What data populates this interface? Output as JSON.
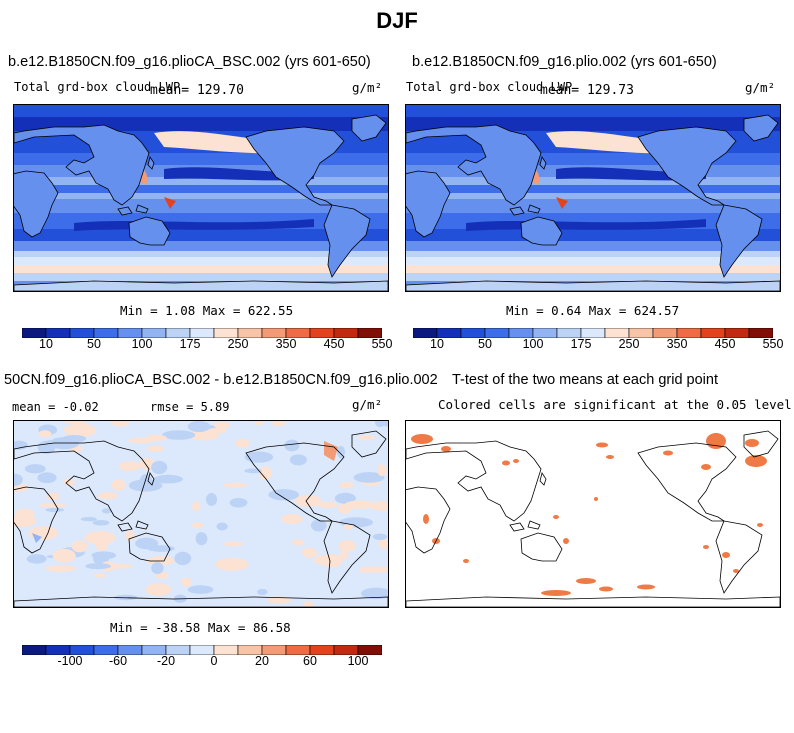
{
  "figure_title": "DJF",
  "chart_data": [
    {
      "type": "heatmap",
      "title": "b.e12.B1850CN.f09_g16.plioCA_BSC.002 (yrs 601-650)",
      "subtitle": "Total grd-box cloud LWP",
      "mean_text": "mean= 129.70",
      "units": "g/m²",
      "stats": "Min =    1.08 Max = 622.55",
      "colorbar": {
        "ticks": [
          "10",
          "50",
          "100",
          "175",
          "250",
          "350",
          "450",
          "550"
        ],
        "colors": [
          "#0c1a80",
          "#1530b8",
          "#2350d8",
          "#3d6de8",
          "#6690ee",
          "#93b4f2",
          "#bcd3f6",
          "#dce8fb",
          "#fbe2d2",
          "#f8c4a8",
          "#f39b76",
          "#ee6b45",
          "#e2421e",
          "#c12a10",
          "#800f05"
        ]
      }
    },
    {
      "type": "heatmap",
      "title": "b.e12.B1850CN.f09_g16.plio.002 (yrs 601-650)",
      "subtitle": "Total grd-box cloud LWP",
      "mean_text": "mean= 129.73",
      "units": "g/m²",
      "stats": "Min =    0.64 Max = 624.57",
      "colorbar": {
        "ticks": [
          "10",
          "50",
          "100",
          "175",
          "250",
          "350",
          "450",
          "550"
        ],
        "colors": [
          "#0c1a80",
          "#1530b8",
          "#2350d8",
          "#3d6de8",
          "#6690ee",
          "#93b4f2",
          "#bcd3f6",
          "#dce8fb",
          "#fbe2d2",
          "#f8c4a8",
          "#f39b76",
          "#ee6b45",
          "#e2421e",
          "#c12a10",
          "#800f05"
        ]
      }
    },
    {
      "type": "heatmap",
      "title": "50CN.f09_g16.plioCA_BSC.002 - b.e12.B1850CN.f09_g16.plio.002",
      "mean_text": "mean =   -0.02",
      "rmse_text": "rmse =    5.89",
      "units": "g/m²",
      "stats": "Min = -38.58 Max =  86.58",
      "colorbar": {
        "ticks": [
          "-100",
          "-60",
          "-20",
          "0",
          "20",
          "60",
          "100"
        ],
        "colors": [
          "#0c1a80",
          "#1530b8",
          "#2350d8",
          "#3d6de8",
          "#6690ee",
          "#93b4f2",
          "#bcd3f6",
          "#dce8fb",
          "#fbe2d2",
          "#f8c4a8",
          "#f39b76",
          "#ee6b45",
          "#e2421e",
          "#c12a10",
          "#800f05"
        ]
      }
    },
    {
      "type": "heatmap",
      "title": "T-test of the two means at each grid point",
      "subtitle": "Colored cells are significant at the 0.05 level",
      "significance_color": "#f07a45"
    }
  ]
}
